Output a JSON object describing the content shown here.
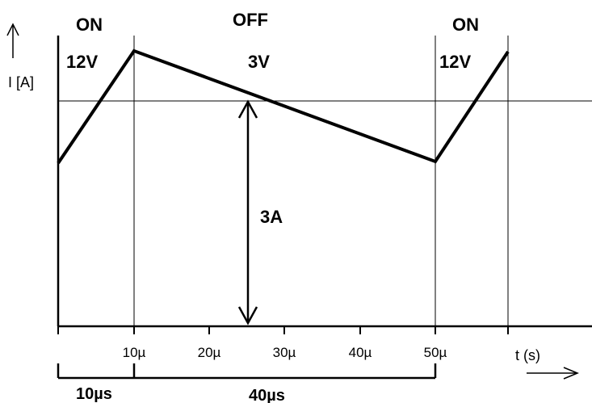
{
  "diagram": {
    "y_axis_label": "I [A]",
    "x_axis_label": "t (s)",
    "phases": {
      "on_1": {
        "state": "ON",
        "voltage": "12V"
      },
      "off": {
        "state": "OFF",
        "voltage": "3V"
      },
      "on_2": {
        "state": "ON",
        "voltage": "12V"
      }
    },
    "ripple_label": "3A",
    "tick_labels": [
      "10µ",
      "20µ",
      "30µ",
      "40µ",
      "50µ"
    ],
    "durations": {
      "on_time": "10µs",
      "off_time": "40µs"
    },
    "chart_data": {
      "type": "line",
      "xlabel": "t (s)",
      "ylabel": "I [A]",
      "x_units": "µs",
      "series": [
        {
          "x": [
            0,
            10,
            50,
            60
          ],
          "y": [
            0,
            1,
            0,
            1
          ]
        }
      ],
      "annotations": [
        "ON 12V",
        "OFF 3V",
        "ON 12V",
        "3A",
        "10µs",
        "40µs"
      ]
    },
    "colors": {
      "stroke": "#000000",
      "background": "#ffffff"
    }
  }
}
